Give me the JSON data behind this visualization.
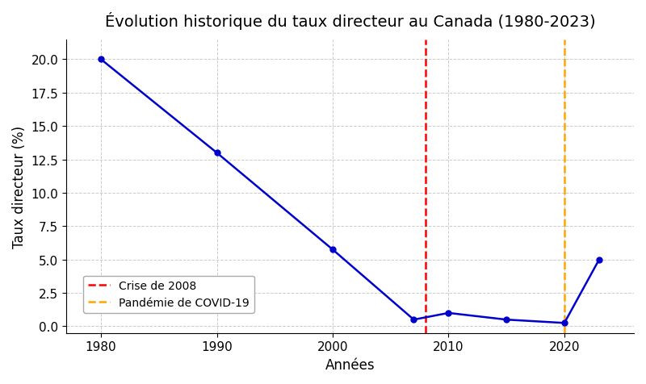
{
  "title": "Évolution historique du taux directeur au Canada (1980-2023)",
  "xlabel": "Années",
  "ylabel": "Taux directeur (%)",
  "years": [
    1980,
    1990,
    2000,
    2007,
    2010,
    2015,
    2020,
    2023
  ],
  "rates": [
    20.0,
    13.0,
    5.75,
    0.5,
    1.0,
    0.5,
    0.25,
    5.0
  ],
  "line_color": "#0000cc",
  "marker": "o",
  "markersize": 5,
  "linewidth": 1.8,
  "vline_2008_x": 2008,
  "vline_2008_color": "red",
  "vline_2008_label": "Crise de 2008",
  "vline_2020_x": 2020,
  "vline_2020_color": "orange",
  "vline_2020_label": "Pandémie de COVID-19",
  "xlim": [
    1977,
    2026
  ],
  "ylim": [
    -0.5,
    21.5
  ],
  "yticks": [
    0.0,
    2.5,
    5.0,
    7.5,
    10.0,
    12.5,
    15.0,
    17.5,
    20.0
  ],
  "xticks": [
    1980,
    1990,
    2000,
    2010,
    2020
  ],
  "background_color": "#ffffff",
  "grid_color": "#cccccc",
  "title_fontsize": 14,
  "label_fontsize": 12,
  "tick_fontsize": 11
}
